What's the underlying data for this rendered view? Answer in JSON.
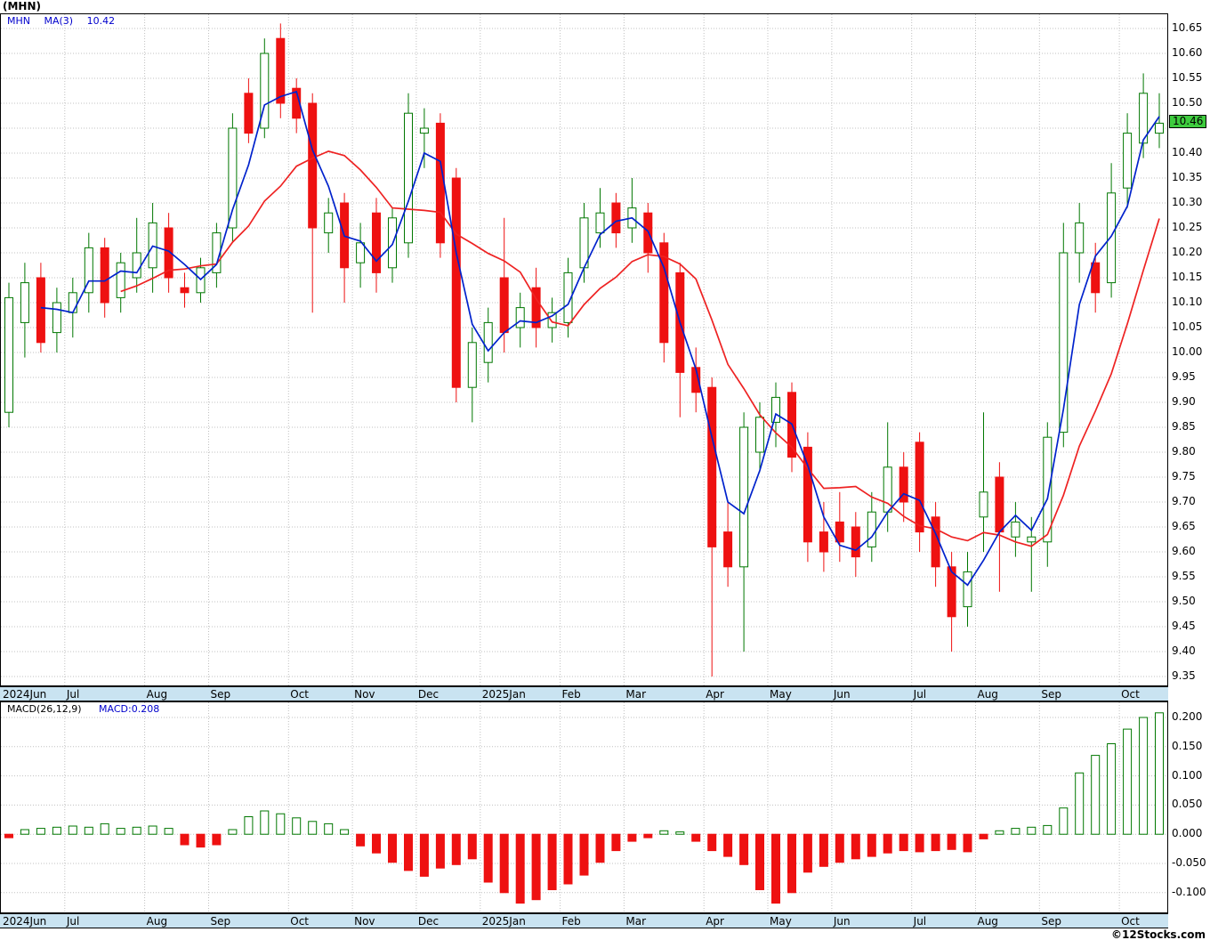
{
  "header": {
    "title": "(MHN)"
  },
  "main_legend": {
    "symbol": "MHN",
    "ma": "MA(3)",
    "value": "10.42"
  },
  "macd_legend": {
    "label": "MACD(26,12,9)",
    "value": "MACD:0.208"
  },
  "watermark": "©12Stocks.com",
  "colors": {
    "up": "#007700",
    "down": "#ee1111",
    "ma_fast": "#0022cc",
    "ma_slow": "#ee2222",
    "grid": "#c0c0c0",
    "strip_bg": "#c9e3f1",
    "price_tag_bg": "#3ecc3e"
  },
  "chart_data": [
    {
      "type": "candlestick",
      "title": "(MHN)",
      "symbol": "MHN",
      "overlay": "MA(3)",
      "overlay_value": 10.42,
      "current_price": 10.46,
      "ylim": [
        9.35,
        10.65
      ],
      "y_tick_step": 0.05,
      "y_axis_side": "right",
      "grid": true,
      "y_ticks": [
        10.65,
        10.6,
        10.55,
        10.5,
        10.4,
        10.35,
        10.3,
        10.25,
        10.2,
        10.15,
        10.1,
        10.05,
        10.0,
        9.95,
        9.9,
        9.85,
        9.8,
        9.75,
        9.7,
        9.65,
        9.6,
        9.55,
        9.5,
        9.45,
        9.4,
        9.35
      ],
      "months": [
        {
          "label": "2024Jun",
          "weeks": 4
        },
        {
          "label": "Jul",
          "weeks": 5
        },
        {
          "label": "Aug",
          "weeks": 4
        },
        {
          "label": "Sep",
          "weeks": 5
        },
        {
          "label": "Oct",
          "weeks": 4
        },
        {
          "label": "Nov",
          "weeks": 4
        },
        {
          "label": "Dec",
          "weeks": 4
        },
        {
          "label": "2025Jan",
          "weeks": 5
        },
        {
          "label": "Feb",
          "weeks": 4
        },
        {
          "label": "Mar",
          "weeks": 5
        },
        {
          "label": "Apr",
          "weeks": 4
        },
        {
          "label": "May",
          "weeks": 4
        },
        {
          "label": "Jun",
          "weeks": 5
        },
        {
          "label": "Jul",
          "weeks": 4
        },
        {
          "label": "Aug",
          "weeks": 4
        },
        {
          "label": "Sep",
          "weeks": 5
        },
        {
          "label": "Oct",
          "weeks": 3
        }
      ],
      "candles_ohlc": [
        [
          9.88,
          10.14,
          9.85,
          10.11
        ],
        [
          10.06,
          10.18,
          9.99,
          10.14
        ],
        [
          10.15,
          10.18,
          10.0,
          10.02
        ],
        [
          10.04,
          10.13,
          10.0,
          10.1
        ],
        [
          10.08,
          10.15,
          10.03,
          10.12
        ],
        [
          10.12,
          10.24,
          10.08,
          10.21
        ],
        [
          10.21,
          10.23,
          10.07,
          10.1
        ],
        [
          10.11,
          10.2,
          10.08,
          10.18
        ],
        [
          10.15,
          10.27,
          10.12,
          10.2
        ],
        [
          10.17,
          10.3,
          10.12,
          10.26
        ],
        [
          10.25,
          10.28,
          10.12,
          10.15
        ],
        [
          10.13,
          10.16,
          10.09,
          10.12
        ],
        [
          10.12,
          10.19,
          10.1,
          10.17
        ],
        [
          10.16,
          10.26,
          10.13,
          10.24
        ],
        [
          10.25,
          10.48,
          10.22,
          10.45
        ],
        [
          10.52,
          10.55,
          10.42,
          10.44
        ],
        [
          10.45,
          10.63,
          10.43,
          10.6
        ],
        [
          10.63,
          10.66,
          10.47,
          10.5
        ],
        [
          10.53,
          10.55,
          10.44,
          10.47
        ],
        [
          10.5,
          10.52,
          10.08,
          10.25
        ],
        [
          10.24,
          10.31,
          10.2,
          10.28
        ],
        [
          10.3,
          10.32,
          10.1,
          10.17
        ],
        [
          10.18,
          10.26,
          10.13,
          10.22
        ],
        [
          10.28,
          10.31,
          10.12,
          10.16
        ],
        [
          10.17,
          10.29,
          10.14,
          10.27
        ],
        [
          10.22,
          10.52,
          10.19,
          10.48
        ],
        [
          10.44,
          10.49,
          10.37,
          10.45
        ],
        [
          10.46,
          10.48,
          10.19,
          10.22
        ],
        [
          10.35,
          10.37,
          9.9,
          9.93
        ],
        [
          9.93,
          10.05,
          9.86,
          10.02
        ],
        [
          9.98,
          10.09,
          9.94,
          10.06
        ],
        [
          10.15,
          10.27,
          10.0,
          10.04
        ],
        [
          10.05,
          10.12,
          10.01,
          10.09
        ],
        [
          10.13,
          10.17,
          10.01,
          10.05
        ],
        [
          10.05,
          10.11,
          10.02,
          10.08
        ],
        [
          10.06,
          10.19,
          10.03,
          10.16
        ],
        [
          10.17,
          10.3,
          10.14,
          10.27
        ],
        [
          10.24,
          10.33,
          10.21,
          10.28
        ],
        [
          10.3,
          10.32,
          10.21,
          10.24
        ],
        [
          10.25,
          10.35,
          10.22,
          10.29
        ],
        [
          10.28,
          10.3,
          10.16,
          10.2
        ],
        [
          10.22,
          10.24,
          9.98,
          10.02
        ],
        [
          10.16,
          10.18,
          9.87,
          9.96
        ],
        [
          9.97,
          10.01,
          9.88,
          9.92
        ],
        [
          9.93,
          9.95,
          9.35,
          9.61
        ],
        [
          9.64,
          9.7,
          9.53,
          9.57
        ],
        [
          9.57,
          9.88,
          9.4,
          9.85
        ],
        [
          9.8,
          9.9,
          9.76,
          9.87
        ],
        [
          9.86,
          9.94,
          9.81,
          9.91
        ],
        [
          9.92,
          9.94,
          9.76,
          9.79
        ],
        [
          9.81,
          9.84,
          9.58,
          9.62
        ],
        [
          9.64,
          9.7,
          9.56,
          9.6
        ],
        [
          9.66,
          9.72,
          9.58,
          9.62
        ],
        [
          9.65,
          9.68,
          9.55,
          9.59
        ],
        [
          9.61,
          9.72,
          9.58,
          9.68
        ],
        [
          9.68,
          9.86,
          9.64,
          9.77
        ],
        [
          9.77,
          9.8,
          9.66,
          9.7
        ],
        [
          9.82,
          9.84,
          9.6,
          9.64
        ],
        [
          9.67,
          9.7,
          9.53,
          9.57
        ],
        [
          9.57,
          9.6,
          9.4,
          9.47
        ],
        [
          9.49,
          9.6,
          9.45,
          9.56
        ],
        [
          9.67,
          9.88,
          9.6,
          9.72
        ],
        [
          9.75,
          9.78,
          9.52,
          9.64
        ],
        [
          9.63,
          9.7,
          9.59,
          9.66
        ],
        [
          9.62,
          9.67,
          9.52,
          9.63
        ],
        [
          9.62,
          9.86,
          9.57,
          9.83
        ],
        [
          9.84,
          10.26,
          9.81,
          10.2
        ],
        [
          10.2,
          10.3,
          10.14,
          10.26
        ],
        [
          10.18,
          10.22,
          10.08,
          10.12
        ],
        [
          10.14,
          10.38,
          10.11,
          10.32
        ],
        [
          10.33,
          10.48,
          10.29,
          10.44
        ],
        [
          10.42,
          10.56,
          10.39,
          10.52
        ],
        [
          10.44,
          10.52,
          10.41,
          10.46
        ]
      ]
    },
    {
      "type": "bar",
      "title": "MACD(26,12,9)",
      "current": 0.208,
      "ylim": [
        -0.115,
        0.215
      ],
      "ticks": [
        0.2,
        0.15,
        0.1,
        0.05,
        0.0,
        -0.05,
        -0.1
      ],
      "grid": true,
      "y_axis_side": "right",
      "values": [
        -0.006,
        0.008,
        0.01,
        0.012,
        0.014,
        0.012,
        0.018,
        0.01,
        0.012,
        0.014,
        0.01,
        -0.018,
        -0.022,
        -0.018,
        0.008,
        0.03,
        0.04,
        0.035,
        0.028,
        0.022,
        0.018,
        0.008,
        -0.02,
        -0.032,
        -0.048,
        -0.062,
        -0.072,
        -0.058,
        -0.052,
        -0.042,
        -0.082,
        -0.1,
        -0.118,
        -0.112,
        -0.095,
        -0.085,
        -0.07,
        -0.048,
        -0.028,
        -0.012,
        -0.006,
        0.006,
        0.004,
        -0.012,
        -0.028,
        -0.038,
        -0.052,
        -0.095,
        -0.118,
        -0.1,
        -0.065,
        -0.055,
        -0.048,
        -0.042,
        -0.038,
        -0.032,
        -0.028,
        -0.03,
        -0.028,
        -0.026,
        -0.03,
        -0.008,
        0.006,
        0.01,
        0.012,
        0.015,
        0.045,
        0.105,
        0.135,
        0.155,
        0.18,
        0.2,
        0.208
      ]
    }
  ]
}
